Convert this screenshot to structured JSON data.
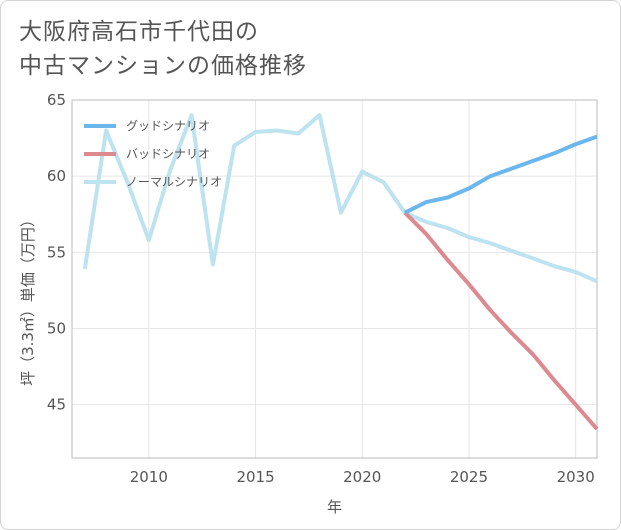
{
  "title": {
    "line1": "大阪府高石市千代田の",
    "line2": "中古マンションの価格推移"
  },
  "chart_data": {
    "type": "line",
    "xlabel": "年",
    "ylabel": "坪（3.3㎡）単価（万円）",
    "xlim": [
      2006.4,
      2031
    ],
    "ylim": [
      41.5,
      65
    ],
    "xticks": [
      2010,
      2015,
      2020,
      2025,
      2030
    ],
    "yticks": [
      45,
      50,
      55,
      60,
      65
    ],
    "legend_position": "top-left",
    "series": [
      {
        "name": "グッドシナリオ",
        "color": "#6cb6ee",
        "x": [
          2022,
          2023,
          2024,
          2025,
          2026,
          2027,
          2028,
          2029,
          2030,
          2031
        ],
        "y": [
          57.6,
          58.3,
          58.6,
          59.2,
          60.0,
          60.5,
          61.0,
          61.5,
          62.1,
          62.6
        ]
      },
      {
        "name": "バッドシナリオ",
        "color": "#dc8a90",
        "x": [
          2022,
          2023,
          2024,
          2025,
          2026,
          2027,
          2028,
          2029,
          2030,
          2031
        ],
        "y": [
          57.6,
          56.2,
          54.5,
          52.9,
          51.2,
          49.7,
          48.3,
          46.6,
          45.0,
          43.4
        ]
      },
      {
        "name": "ノーマルシナリオ",
        "color": "#bde2f0",
        "x": [
          2007,
          2008,
          2009,
          2010,
          2011,
          2012,
          2013,
          2014,
          2015,
          2016,
          2017,
          2018,
          2019,
          2020,
          2021,
          2022,
          2023,
          2024,
          2025,
          2026,
          2027,
          2028,
          2029,
          2030,
          2031
        ],
        "y": [
          53.9,
          63.0,
          59.6,
          55.8,
          60.4,
          64.0,
          54.2,
          62.0,
          62.9,
          63.0,
          62.8,
          64.0,
          57.6,
          60.3,
          59.6,
          57.6,
          57.0,
          56.6,
          56.0,
          55.6,
          55.1,
          54.6,
          54.1,
          53.7,
          53.1
        ]
      }
    ]
  }
}
